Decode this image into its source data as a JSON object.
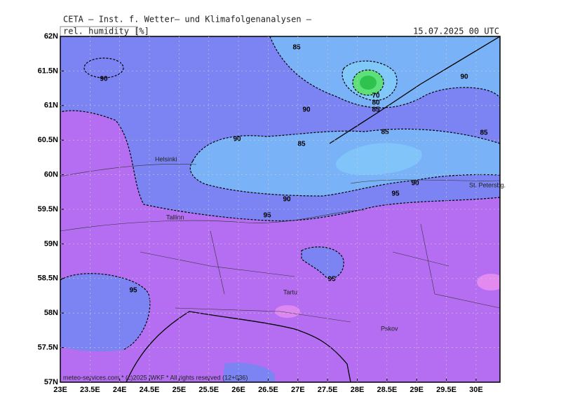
{
  "header": {
    "title": "CETA — Inst. f. Wetter— und Klimafolgenanalysen —",
    "field": "rel. humidity [%]",
    "date": "15.07.2025 00 UTC"
  },
  "axes": {
    "y_labels": [
      "62N",
      "61.5N",
      "61N",
      "60.5N",
      "60N",
      "59.5N",
      "59N",
      "58.5N",
      "58N",
      "57.5N",
      "57N"
    ],
    "x_labels": [
      "23E",
      "23.5E",
      "24E",
      "24.5E",
      "25E",
      "25.5E",
      "26E",
      "26.5E",
      "27E",
      "27.5E",
      "28E",
      "28.5E",
      "29E",
      "29.5E",
      "30E"
    ]
  },
  "contour_labels": [
    85,
    90,
    90,
    90,
    70,
    80,
    85,
    85,
    85,
    90,
    85,
    90,
    95,
    90,
    95,
    95,
    95
  ],
  "cities": [
    "Helsinki",
    "Tallinn",
    "Tartu",
    "Pskov",
    "St. Petersbg."
  ],
  "footer": "meteo-services.com * (c)2025 IWKF * All rights reserved (12+036)"
}
